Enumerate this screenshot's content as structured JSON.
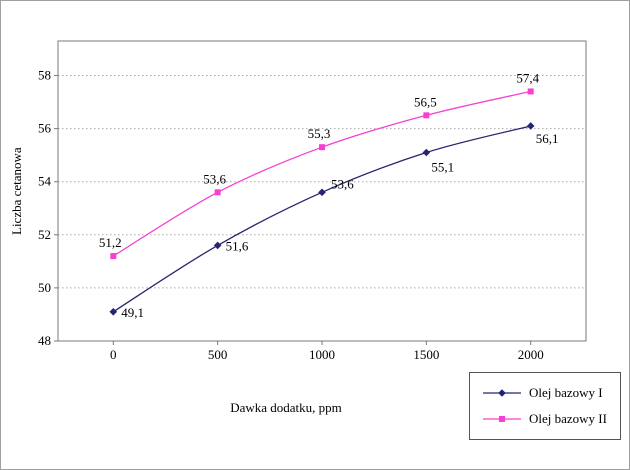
{
  "chart_data": {
    "type": "line",
    "title": "",
    "xlabel": "Dawka dodatku, ppm",
    "ylabel": "Liczba cetanowa",
    "x": [
      0,
      500,
      1000,
      1500,
      2000
    ],
    "xticks": [
      0,
      500,
      1000,
      1500,
      2000
    ],
    "yticks": [
      48,
      50,
      52,
      54,
      56,
      58
    ],
    "ylim": [
      48,
      58
    ],
    "grid": "horizontal-dotted",
    "legend_position": "bottom-right-outside",
    "series": [
      {
        "name": "Olej bazowy I",
        "marker": "diamond",
        "color": "#252570",
        "values": [
          49.1,
          51.6,
          53.6,
          55.1,
          56.1
        ],
        "point_labels": [
          "49,1",
          "51,6",
          "53,6",
          "55,1",
          "56,1"
        ]
      },
      {
        "name": "Olej bazowy II",
        "marker": "square",
        "color": "#f640d2",
        "values": [
          51.2,
          53.6,
          55.3,
          56.5,
          57.4
        ],
        "point_labels": [
          "51,2",
          "53,6",
          "55,3",
          "56,5",
          "57,4"
        ]
      }
    ]
  }
}
